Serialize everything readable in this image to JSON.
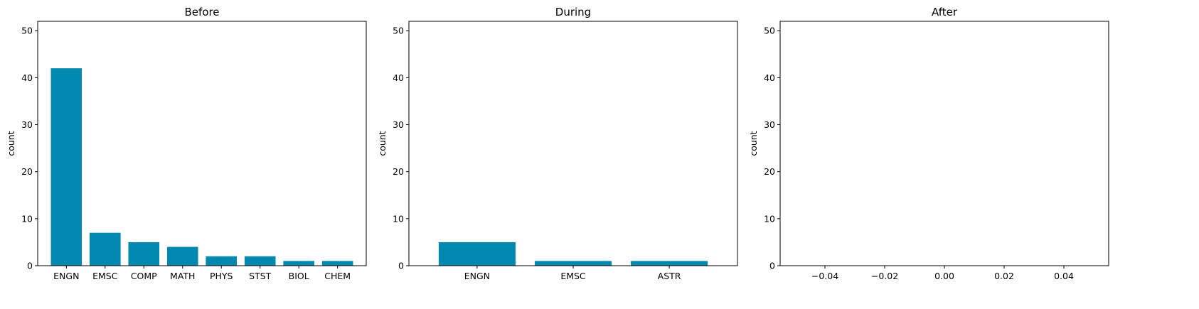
{
  "chart_data": [
    {
      "type": "bar",
      "title": "Before",
      "ylabel": "count",
      "xlabel": "",
      "categories": [
        "ENGN",
        "EMSC",
        "COMP",
        "MATH",
        "PHYS",
        "STST",
        "BIOL",
        "CHEM"
      ],
      "values": [
        42,
        7,
        5,
        4,
        2,
        2,
        1,
        1
      ],
      "ylim": [
        0,
        52
      ],
      "yticks": [
        0,
        10,
        20,
        30,
        40,
        50
      ],
      "grid": false,
      "color": "#0088ae"
    },
    {
      "type": "bar",
      "title": "During",
      "ylabel": "count",
      "xlabel": "",
      "categories": [
        "ENGN",
        "EMSC",
        "ASTR"
      ],
      "values": [
        5,
        1,
        1
      ],
      "ylim": [
        0,
        52
      ],
      "yticks": [
        0,
        10,
        20,
        30,
        40,
        50
      ],
      "grid": false,
      "color": "#0088ae"
    },
    {
      "type": "bar",
      "title": "After",
      "ylabel": "count",
      "xlabel": "",
      "categories": [],
      "values": [],
      "xlim": [
        -0.055,
        0.055
      ],
      "xticks": [
        -0.04,
        -0.02,
        0.0,
        0.02,
        0.04
      ],
      "xtick_labels": [
        "−0.04",
        "−0.02",
        "0.00",
        "0.02",
        "0.04"
      ],
      "ylim": [
        0,
        52
      ],
      "yticks": [
        0,
        10,
        20,
        30,
        40,
        50
      ],
      "grid": false,
      "color": "#0088ae"
    }
  ]
}
